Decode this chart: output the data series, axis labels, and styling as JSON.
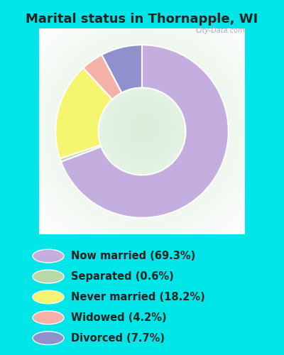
{
  "title": "Marital status in Thornapple, WI",
  "slices": [
    69.3,
    0.6,
    18.2,
    4.2,
    7.7
  ],
  "colors": [
    "#c4aee0",
    "#b8d8a8",
    "#f5f570",
    "#f5b0a8",
    "#9090cc"
  ],
  "labels": [
    "Now married (69.3%)",
    "Separated (0.6%)",
    "Never married (18.2%)",
    "Widowed (4.2%)",
    "Divorced (7.7%)"
  ],
  "bg_cyan": "#00e5e8",
  "bg_chart_color": "#d8edd8",
  "watermark": "City-Data.com",
  "title_fontsize": 13,
  "legend_fontsize": 10.5,
  "title_color": "#222222"
}
